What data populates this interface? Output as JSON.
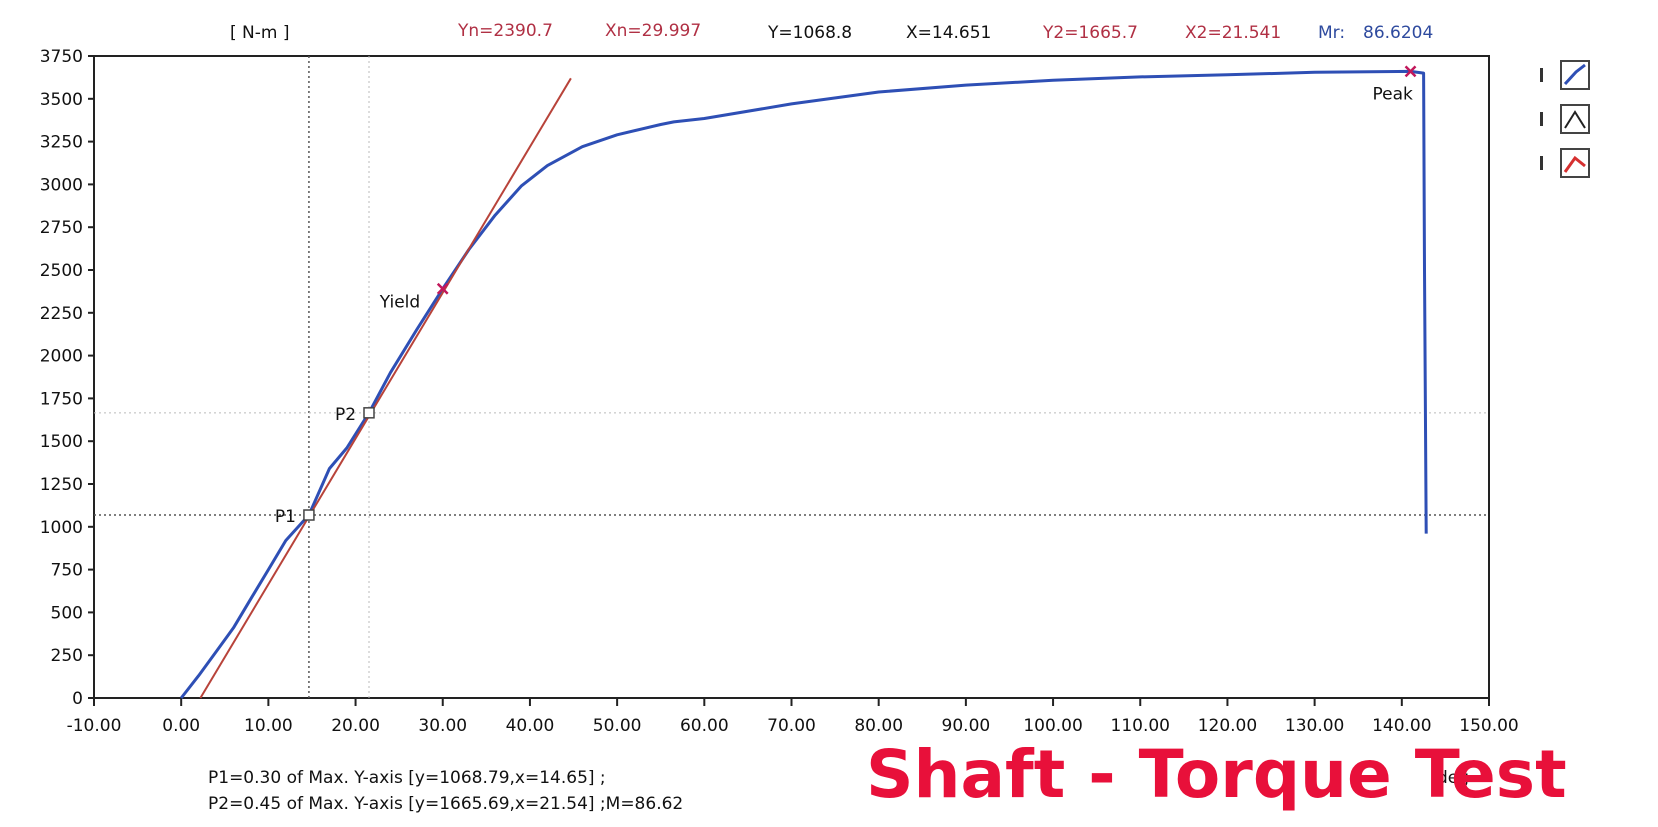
{
  "header": {
    "unit": "[ N-m ]",
    "yn": "Yn=2390.7",
    "xn": "Xn=29.997",
    "y": "Y=1068.8",
    "x": "X=14.651",
    "y2": "Y2=1665.7",
    "x2": "X2=21.541",
    "mr_label": "Mr:",
    "mr_value": "86.6204"
  },
  "caption": {
    "p1": "P1=0.30 of Max. Y-axis [y=1068.79,x=14.65] ;",
    "p2": "P2=0.45 of Max. Y-axis [y=1665.69,x=21.54] ;M=86.62"
  },
  "x_unit": "deg",
  "banner": "Shaft - Torque Test",
  "colors": {
    "curve": "#2e4fb5",
    "tangent": "#b8433a",
    "marker": "#c2185b",
    "header_red": "#b03044",
    "header_blue": "#2e4a9e",
    "banner": "#e8103a"
  },
  "legend": [
    {
      "name": "legend-toggle-blue",
      "icon": "line-icon",
      "color": "#2e4fb5"
    },
    {
      "name": "legend-toggle-black",
      "icon": "line-icon",
      "color": "#222222"
    },
    {
      "name": "legend-toggle-red",
      "icon": "line-icon",
      "color": "#d63030"
    }
  ],
  "chart_data": {
    "type": "line",
    "xlim": [
      -10,
      150
    ],
    "ylim": [
      0,
      3750
    ],
    "x_ticks": [
      "-10.00",
      "0.00",
      "10.00",
      "20.00",
      "30.00",
      "40.00",
      "50.00",
      "60.00",
      "70.00",
      "80.00",
      "90.00",
      "100.00",
      "110.00",
      "120.00",
      "130.00",
      "140.00",
      "150.00"
    ],
    "y_ticks": [
      "0",
      "250",
      "500",
      "750",
      "1000",
      "1250",
      "1500",
      "1750",
      "2000",
      "2250",
      "2500",
      "2750",
      "3000",
      "3250",
      "3500",
      "3750"
    ],
    "series": [
      {
        "x": [
          0,
          2,
          4,
          6,
          8,
          10,
          12,
          14.65,
          17,
          19,
          21.54,
          24,
          27,
          30,
          33,
          36,
          39,
          42,
          46,
          50,
          55,
          56.5,
          60,
          70,
          80,
          90,
          100,
          110,
          120,
          130,
          141,
          142.5,
          142.6,
          142.8
        ],
        "y": [
          0,
          130,
          270,
          410,
          580,
          750,
          920,
          1068.8,
          1340,
          1460,
          1665.7,
          1900,
          2150,
          2390.7,
          2620,
          2820,
          2990,
          3110,
          3220,
          3290,
          3350,
          3365,
          3385,
          3470,
          3540,
          3580,
          3608,
          3628,
          3640,
          3655,
          3660,
          3650,
          2500,
          960
        ]
      },
      {
        "x": [
          2.2,
          44.7
        ],
        "y": [
          0,
          3620
        ]
      }
    ],
    "markers": [
      {
        "label": "Yield",
        "x": 29.997,
        "y": 2390.7,
        "symbol": "x"
      },
      {
        "label": "Peak",
        "x": 141,
        "y": 3660,
        "symbol": "x"
      },
      {
        "label": "P1",
        "x": 14.651,
        "y": 1068.8,
        "symbol": "square"
      },
      {
        "label": "P2",
        "x": 21.541,
        "y": 1665.7,
        "symbol": "square"
      }
    ],
    "cursors": {
      "vertical_x": [
        14.651,
        21.541
      ],
      "horizontal_y": [
        1068.8,
        1665.7
      ]
    }
  }
}
